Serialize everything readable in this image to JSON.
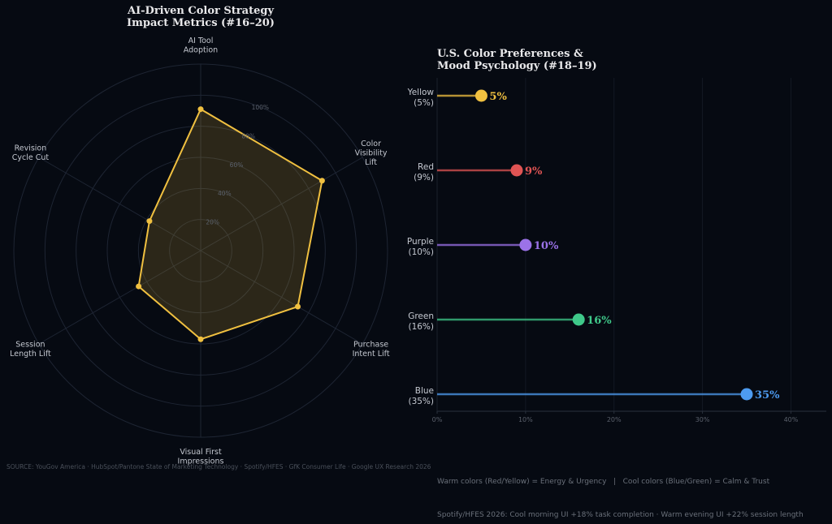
{
  "radar": {
    "title_line1": "AI-Driven Color Strategy",
    "title_line2": "Impact Metrics (#16–20)"
  },
  "lollipop": {
    "title_line1": "U.S. Color Preferences &",
    "title_line2": "Mood Psychology (#18–19)"
  },
  "footer": {
    "source": "SOURCE: YouGov America · HubSpot/Pantone State of Marketing Technology · Spotify/HFES · GfK Consumer Life · Google UX Research 2026",
    "note1": "Warm colors (Red/Yellow) = Energy & Urgency   |   Cool colors (Blue/Green) = Calm & Trust",
    "note2": "Spotify/HFES 2026: Cool morning UI +18% task completion · Warm evening UI +22% session length"
  },
  "colors": {
    "background": "#060a12",
    "radar_line": "#f0c040",
    "radar_fill": "#3a2e14",
    "grid": "#1e2533",
    "text": "#c4c8d0",
    "muted": "#5a606b"
  },
  "chart_data": [
    {
      "type": "radar",
      "categories": [
        [
          "AI Tool",
          "Adoption"
        ],
        [
          "Color",
          "Visibility",
          "Lift"
        ],
        [
          "Purchase",
          "Intent Lift"
        ],
        [
          "Visual First",
          "Impressions"
        ],
        [
          "Session",
          "Length Lift"
        ],
        [
          "Revision",
          "Cycle Cut"
        ]
      ],
      "values": [
        91,
        90,
        72,
        57,
        46,
        38
      ],
      "r_ticks": [
        "20%",
        "40%",
        "60%",
        "80%",
        "100%"
      ],
      "rlim": [
        0,
        120
      ],
      "grid": true
    },
    {
      "type": "lollipop",
      "categories": [
        {
          "label": "Yellow",
          "sub": "(5%)",
          "value": 5,
          "value_label": "5%",
          "color": "#f0c040"
        },
        {
          "label": "Red",
          "sub": "(9%)",
          "value": 9,
          "value_label": "9%",
          "color": "#e05454"
        },
        {
          "label": "Purple",
          "sub": "(10%)",
          "value": 10,
          "value_label": "10%",
          "color": "#9b72e8"
        },
        {
          "label": "Green",
          "sub": "(16%)",
          "value": 16,
          "value_label": "16%",
          "color": "#3fc98a"
        },
        {
          "label": "Blue",
          "sub": "(35%)",
          "value": 35,
          "value_label": "35%",
          "color": "#4d9bf0"
        }
      ],
      "xlim": [
        0,
        44
      ],
      "x_ticks": [
        0,
        10,
        20,
        30,
        40
      ],
      "x_tick_labels": [
        "0%",
        "10%",
        "20%",
        "30%",
        "40%"
      ],
      "grid": true
    }
  ]
}
